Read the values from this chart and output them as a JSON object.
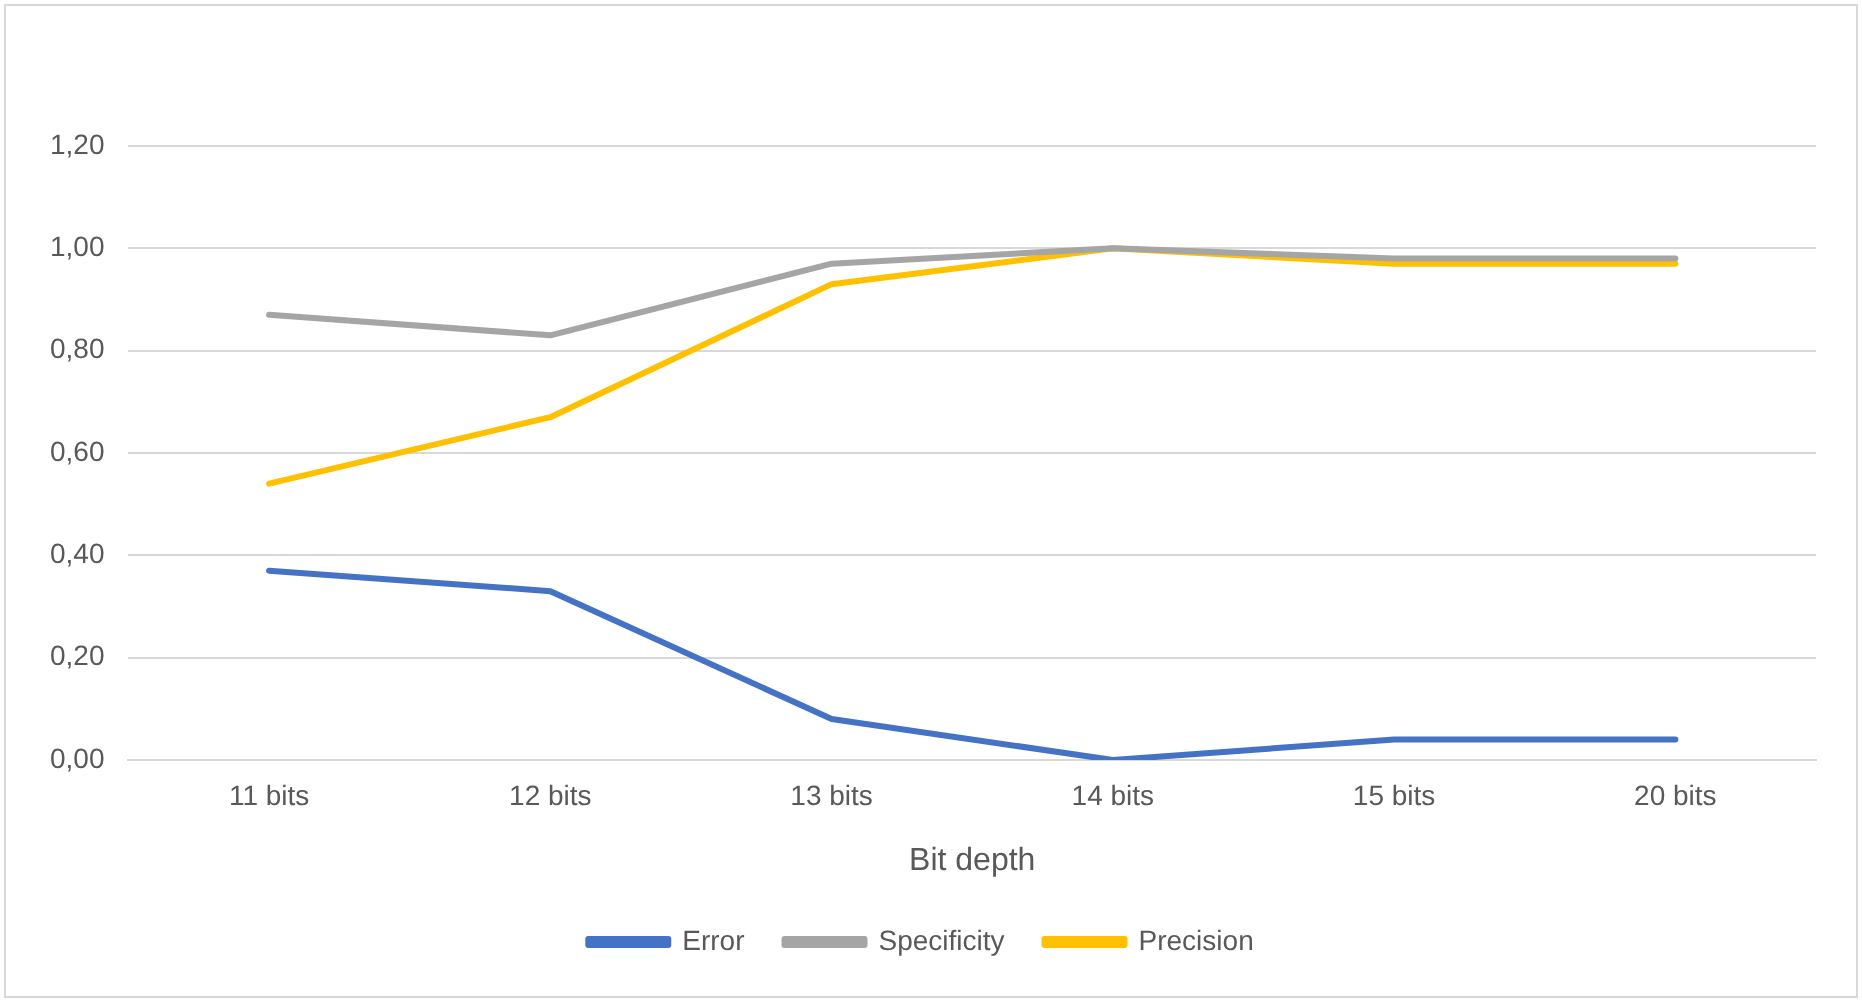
{
  "chart_data": {
    "type": "line",
    "xlabel": "Bit depth",
    "categories": [
      "11 bits",
      "12 bits",
      "13 bits",
      "14 bits",
      "15 bits",
      "20 bits"
    ],
    "series": [
      {
        "name": "Error",
        "color": "#4472c4",
        "values": [
          0.37,
          0.33,
          0.08,
          0,
          0.04,
          0.04
        ]
      },
      {
        "name": "Specificity",
        "color": "#a5a5a5",
        "values": [
          0.87,
          0.83,
          0.97,
          1.0,
          0.98,
          0.98
        ]
      },
      {
        "name": "Precision",
        "color": "#ffc000",
        "values": [
          0.54,
          0.67,
          0.93,
          1.0,
          0.97,
          0.97
        ]
      }
    ],
    "ylim": [
      0,
      1.2
    ],
    "yticks": [
      {
        "value": 0,
        "label": "0,00"
      },
      {
        "value": 0.2,
        "label": "0,20"
      },
      {
        "value": 0.4,
        "label": "0,40"
      },
      {
        "value": 0.6,
        "label": "0,60"
      },
      {
        "value": 0.8,
        "label": "0,80"
      },
      {
        "value": 1.0,
        "label": "1,00"
      },
      {
        "value": 1.2,
        "label": "1,20"
      }
    ],
    "grid": "y",
    "legend": "bottom",
    "marker": "none",
    "line_style": "solid"
  }
}
